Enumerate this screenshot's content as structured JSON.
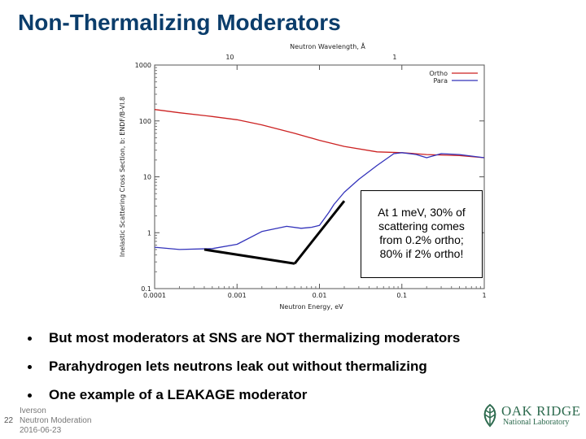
{
  "slide": {
    "title": "Non-Thermalizing Moderators",
    "page_number": "22",
    "footer": {
      "author": "Iverson",
      "topic": "Neutron Moderation",
      "date": "2016-06-23"
    },
    "logo": {
      "line1": "OAK RIDGE",
      "line2": "National Laboratory",
      "color": "#2e6b4f"
    }
  },
  "callout": {
    "lines": [
      "At 1 meV, 30% of",
      "scattering comes",
      "from 0.2% ortho;",
      "80% if 2% ortho!"
    ]
  },
  "bullets": [
    "But most moderators at SNS are NOT thermalizing moderators",
    "Parahydrogen lets neutrons leak out without thermalizing",
    "One example of a LEAKAGE moderator"
  ],
  "chart_data": {
    "type": "line",
    "title": "",
    "xlabel": "Neutron Energy, eV",
    "ylabel": "Inelastic Scattering Cross Section, b: ENDF/B-VI.8",
    "x2label": "Neutron Wavelength, Å",
    "xscale": "log",
    "yscale": "log",
    "xlim": [
      0.0001,
      1
    ],
    "ylim": [
      0.1,
      1000
    ],
    "x_ticks": [
      "0.0001",
      "0.001",
      "0.01",
      "0.1",
      "1"
    ],
    "y_ticks": [
      "0.1",
      "1",
      "10",
      "100",
      "1000"
    ],
    "x2_ticks": [
      {
        "label": "10",
        "energy": 0.000818
      },
      {
        "label": "1",
        "energy": 0.0818
      }
    ],
    "grid": false,
    "legend": "top-right",
    "series": [
      {
        "name": "Ortho",
        "color": "#cc2222",
        "x": [
          0.0001,
          0.0002,
          0.0005,
          0.001,
          0.002,
          0.005,
          0.01,
          0.02,
          0.05,
          0.1,
          0.2,
          0.5,
          1
        ],
        "y": [
          160,
          140,
          120,
          105,
          85,
          60,
          45,
          35,
          28,
          27,
          25,
          24,
          22
        ]
      },
      {
        "name": "Para",
        "color": "#3333bb",
        "x": [
          0.0001,
          0.0002,
          0.0005,
          0.001,
          0.002,
          0.004,
          0.006,
          0.008,
          0.01,
          0.013,
          0.015,
          0.02,
          0.03,
          0.05,
          0.08,
          0.1,
          0.15,
          0.2,
          0.3,
          0.5,
          1
        ],
        "y": [
          0.55,
          0.5,
          0.52,
          0.62,
          1.05,
          1.3,
          1.2,
          1.25,
          1.35,
          2.3,
          3.2,
          5.3,
          9,
          16,
          26,
          27,
          25,
          22,
          26,
          25,
          22
        ]
      }
    ],
    "annotation_lines": [
      {
        "from": [
          0.0004,
          0.5
        ],
        "to": [
          0.005,
          0.28
        ]
      },
      {
        "from": [
          0.005,
          0.28
        ],
        "to": [
          0.02,
          3.7
        ]
      }
    ]
  }
}
